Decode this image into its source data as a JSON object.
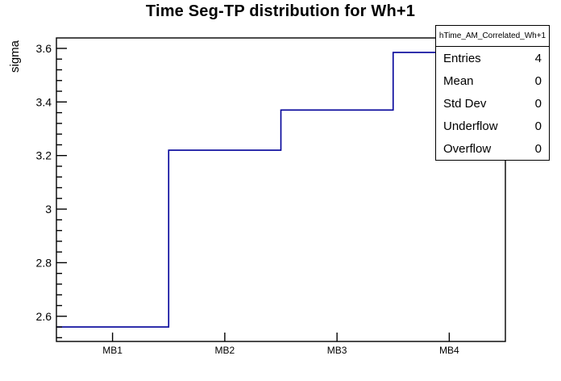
{
  "chart_data": {
    "type": "bar",
    "render_style": "step-outline-histogram",
    "title": "Time Seg-TP distribution for Wh+1",
    "ylabel": "sigma",
    "xlabel": "",
    "categories": [
      "MB1",
      "MB2",
      "MB3",
      "MB4"
    ],
    "values": [
      2.56,
      3.22,
      3.37,
      3.585
    ],
    "ylim": [
      2.506,
      3.639
    ],
    "yticks_major": [
      2.6,
      2.8,
      3,
      3.2,
      3.4,
      3.6
    ],
    "ytick_minor_step": 0.04,
    "grid": false,
    "legend_position": "none",
    "line_color": "#000099",
    "frame_color": "#000000"
  },
  "stats_box": {
    "title": "hTime_AM_Correlated_Wh+1",
    "rows": [
      {
        "label": "Entries",
        "value": "4"
      },
      {
        "label": "Mean",
        "value": "0"
      },
      {
        "label": "Std Dev",
        "value": "0"
      },
      {
        "label": "Underflow",
        "value": "0"
      },
      {
        "label": "Overflow",
        "value": "0"
      }
    ]
  }
}
